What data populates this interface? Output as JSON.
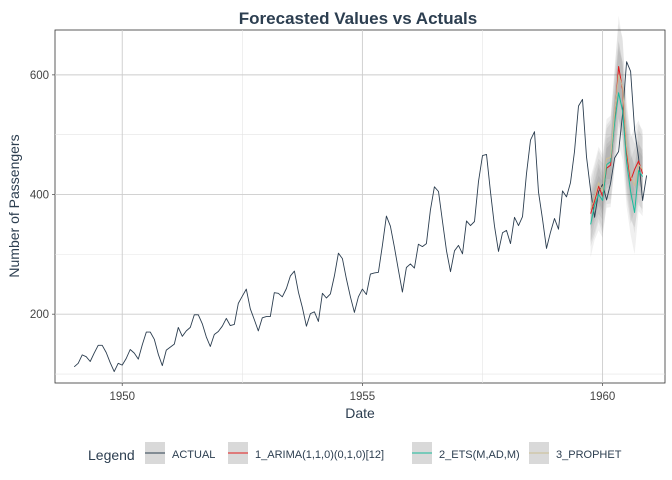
{
  "chart_data": {
    "type": "line",
    "title": "Forecasted Values vs Actuals",
    "xlabel": "Date",
    "ylabel": "Number of Passengers",
    "xlim": [
      1948.6,
      1961.3
    ],
    "ylim": [
      85,
      675
    ],
    "x_ticks": [
      1950,
      1955,
      1960
    ],
    "x_tick_labels": [
      "1950",
      "1955",
      "1960"
    ],
    "y_ticks": [
      200,
      400,
      600
    ],
    "y_tick_labels": [
      "200",
      "400",
      "600"
    ],
    "grid": true,
    "legend": {
      "title": "Legend",
      "position": "bottom",
      "entries": [
        "ACTUAL",
        "1_ARIMA(1,1,0)(0,1,0)[12]",
        "2_ETS(M,AD,M)",
        "3_PROPHET"
      ]
    },
    "colors": {
      "ACTUAL": "#2c3e50",
      "ARIMA": "#e31a1c",
      "ETS": "#18bc9c",
      "PROPHET": "#ccbe93",
      "band": "#555555"
    },
    "actual": {
      "name": "ACTUAL",
      "start": 1949.0,
      "step": 0.08333333,
      "values": [
        112,
        118,
        132,
        129,
        121,
        135,
        148,
        148,
        136,
        119,
        104,
        118,
        115,
        126,
        141,
        135,
        125,
        149,
        170,
        170,
        158,
        133,
        114,
        140,
        145,
        150,
        178,
        163,
        172,
        178,
        199,
        199,
        184,
        162,
        146,
        166,
        171,
        180,
        193,
        181,
        183,
        218,
        230,
        242,
        209,
        191,
        172,
        194,
        196,
        196,
        236,
        235,
        229,
        243,
        264,
        272,
        237,
        211,
        180,
        201,
        204,
        188,
        235,
        227,
        234,
        264,
        302,
        293,
        259,
        229,
        203,
        229,
        242,
        233,
        267,
        269,
        270,
        315,
        364,
        347,
        312,
        274,
        237,
        278,
        284,
        277,
        317,
        313,
        318,
        374,
        413,
        405,
        355,
        306,
        271,
        306,
        315,
        301,
        356,
        348,
        355,
        422,
        465,
        467,
        404,
        347,
        305,
        336,
        340,
        318,
        362,
        348,
        363,
        435,
        491,
        505,
        404,
        359,
        310,
        337,
        360,
        342,
        406,
        396,
        420,
        472,
        548,
        559,
        463,
        407,
        362,
        405,
        417,
        391,
        419,
        461,
        472,
        535,
        622,
        606,
        508,
        461,
        390,
        432
      ]
    },
    "forecasts": {
      "start": 1959.75,
      "step": 0.08333333,
      "series": [
        {
          "name": "1_ARIMA(1,1,0)(0,1,0)[12]",
          "values": [
            368,
            389,
            414,
            397,
            444,
            449,
            526,
            614,
            575,
            470,
            423,
            442,
            456,
            435
          ]
        },
        {
          "name": "2_ETS(M,AD,M)",
          "values": [
            350,
            382,
            400,
            390,
            450,
            455,
            520,
            570,
            540,
            455,
            405,
            370,
            440,
            430
          ]
        },
        {
          "name": "3_PROPHET",
          "values": [
            375,
            395,
            420,
            405,
            460,
            462,
            535,
            600,
            580,
            480,
            430,
            415,
            450,
            442
          ]
        }
      ],
      "band_outer_width": [
        55,
        58,
        60,
        62,
        66,
        70,
        78,
        85,
        82,
        75,
        72,
        70,
        68,
        66
      ],
      "band_inner_width": [
        28,
        30,
        32,
        32,
        34,
        36,
        40,
        44,
        42,
        38,
        36,
        35,
        34,
        33
      ]
    }
  }
}
